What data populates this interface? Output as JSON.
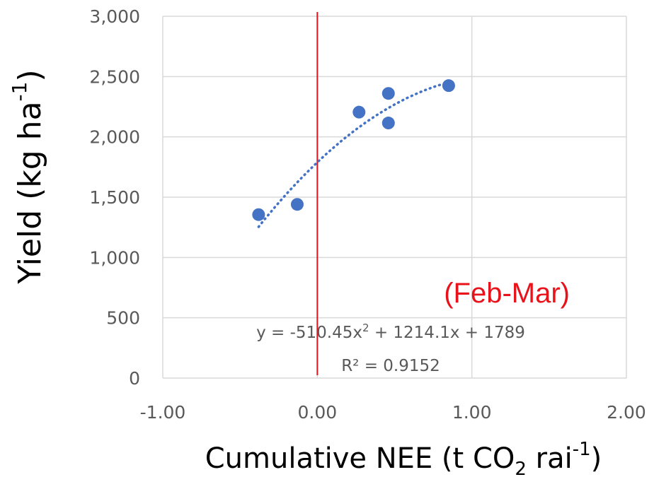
{
  "chart_data": {
    "type": "scatter",
    "xlim": [
      -1.0,
      2.0
    ],
    "ylim": [
      0,
      3000
    ],
    "x_ticks": [
      -1.0,
      0.0,
      1.0,
      2.0
    ],
    "x_tick_labels": [
      "-1.00",
      "0.00",
      "1.00",
      "2.00"
    ],
    "y_ticks": [
      0,
      500,
      1000,
      1500,
      2000,
      2500,
      3000
    ],
    "y_tick_labels": [
      "0",
      "500",
      "1,000",
      "1,500",
      "2,000",
      "2,500",
      "3,000"
    ],
    "grid": true,
    "xlabel": {
      "main": "Cumulative NEE (t CO",
      "sub": "2",
      "mid": " rai",
      "sup": "-1",
      "end": ")"
    },
    "ylabel": {
      "main": "Yield (kg ha",
      "sup": "-1",
      "end": ")"
    },
    "points": [
      {
        "x": -0.38,
        "y": 1355
      },
      {
        "x": -0.13,
        "y": 1440
      },
      {
        "x": 0.27,
        "y": 2205
      },
      {
        "x": 0.46,
        "y": 2360
      },
      {
        "x": 0.46,
        "y": 2115
      },
      {
        "x": 0.85,
        "y": 2425
      }
    ],
    "trendline": {
      "type": "polynomial",
      "coefficients": [
        -510.45,
        1214.1,
        1789
      ],
      "x_range": [
        -0.38,
        0.85
      ],
      "style": "dotted"
    },
    "vertical_line": {
      "x": 0.0
    },
    "equation_text": {
      "line1_pre": "y = -510.45x",
      "line1_sup": "2",
      "line1_post": " + 1214.1x + 1789",
      "line2": "R² = 0.9152"
    },
    "annotation": "(Feb-Mar)",
    "colors": {
      "points": "#4472c4",
      "trendline": "#4472c4",
      "vertical_line": "#e8131a",
      "annotation": "#e8131a",
      "grid": "#d9d9d9"
    }
  }
}
